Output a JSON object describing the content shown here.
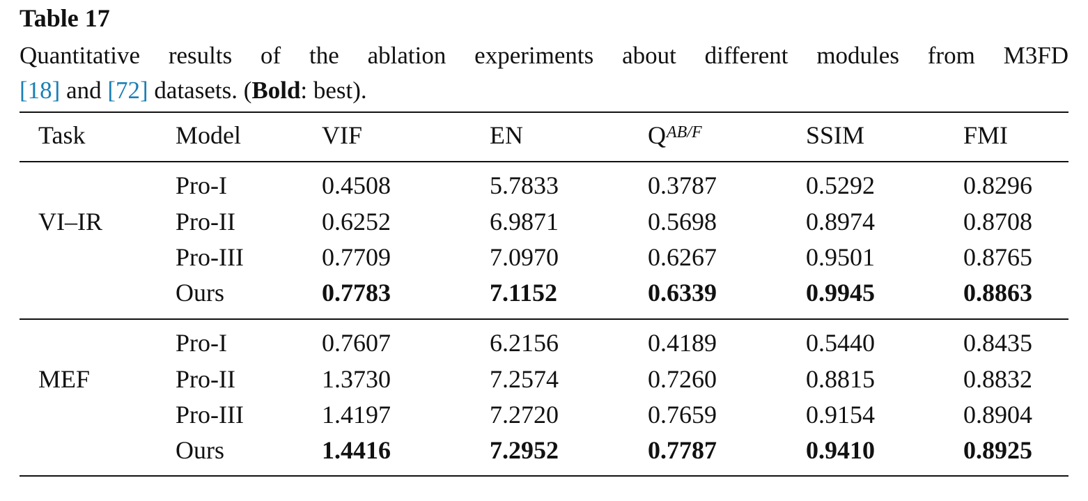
{
  "table_number": "Table 17",
  "caption": {
    "line1": "Quantitative results of the ablation experiments about different modules from M3FD",
    "cite1": "[18]",
    "and": "and",
    "cite2": "[72]",
    "datasets_text": "datasets. (",
    "bold_word": "Bold",
    "tail": ": best)."
  },
  "columns": {
    "task": "Task",
    "model": "Model",
    "vif": "VIF",
    "en": "EN",
    "qab_base": "Q",
    "qab_sup": "AB/F",
    "ssim": "SSIM",
    "fmi": "FMI"
  },
  "groups": [
    {
      "task": "VI–IR",
      "rows": [
        {
          "model": "Pro-I",
          "vif": "0.4508",
          "en": "5.7833",
          "qab": "0.3787",
          "ssim": "0.5292",
          "fmi": "0.8296"
        },
        {
          "model": "Pro-II",
          "vif": "0.6252",
          "en": "6.9871",
          "qab": "0.5698",
          "ssim": "0.8974",
          "fmi": "0.8708"
        },
        {
          "model": "Pro-III",
          "vif": "0.7709",
          "en": "7.0970",
          "qab": "0.6267",
          "ssim": "0.9501",
          "fmi": "0.8765"
        },
        {
          "model": "Ours",
          "vif": "0.7783",
          "en": "7.1152",
          "qab": "0.6339",
          "ssim": "0.9945",
          "fmi": "0.8863"
        }
      ]
    },
    {
      "task": "MEF",
      "rows": [
        {
          "model": "Pro-I",
          "vif": "0.7607",
          "en": "6.2156",
          "qab": "0.4189",
          "ssim": "0.5440",
          "fmi": "0.8435"
        },
        {
          "model": "Pro-II",
          "vif": "1.3730",
          "en": "7.2574",
          "qab": "0.7260",
          "ssim": "0.8815",
          "fmi": "0.8832"
        },
        {
          "model": "Pro-III",
          "vif": "1.4197",
          "en": "7.2720",
          "qab": "0.7659",
          "ssim": "0.9154",
          "fmi": "0.8904"
        },
        {
          "model": "Ours",
          "vif": "1.4416",
          "en": "7.2952",
          "qab": "0.7787",
          "ssim": "0.9410",
          "fmi": "0.8925"
        }
      ]
    }
  ],
  "colors": {
    "citation": "#1a7fb5",
    "text": "#111111"
  }
}
